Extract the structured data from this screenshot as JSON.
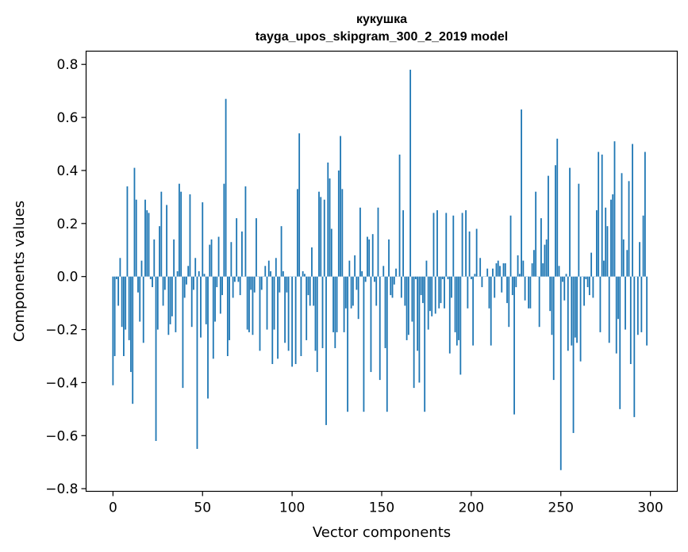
{
  "chart_data": {
    "type": "bar",
    "title": "кукушка",
    "subtitle": "tayga_upos_skipgram_300_2_2019 model",
    "xlabel": "Vector components",
    "ylabel": "Components values",
    "xlim": [
      -15,
      315
    ],
    "ylim": [
      -0.81,
      0.85
    ],
    "xticks": [
      0,
      50,
      100,
      150,
      200,
      250,
      300
    ],
    "xtick_labels": [
      "0",
      "50",
      "100",
      "150",
      "200",
      "250",
      "300"
    ],
    "yticks": [
      -0.8,
      -0.6,
      -0.4,
      -0.2,
      0.0,
      0.2,
      0.4,
      0.6,
      0.8
    ],
    "ytick_labels": [
      "−0.8",
      "−0.6",
      "−0.4",
      "−0.2",
      "0.0",
      "0.2",
      "0.4",
      "0.6",
      "0.8"
    ],
    "bar_color": "#1f77b4",
    "grid": false,
    "series": [
      {
        "name": "кукушка",
        "x_start": 0,
        "values": [
          -0.41,
          -0.3,
          -0.01,
          -0.11,
          0.07,
          -0.19,
          -0.3,
          -0.2,
          0.34,
          -0.24,
          -0.36,
          -0.48,
          0.41,
          0.29,
          -0.06,
          -0.17,
          0.06,
          -0.25,
          0.29,
          0.25,
          0.24,
          -0.01,
          -0.04,
          0.14,
          -0.62,
          -0.2,
          0.19,
          0.32,
          -0.11,
          -0.05,
          0.27,
          -0.22,
          -0.18,
          -0.15,
          0.14,
          -0.21,
          0.02,
          0.35,
          0.32,
          -0.42,
          -0.08,
          -0.03,
          0.04,
          0.31,
          -0.19,
          -0.05,
          0.07,
          -0.65,
          0.02,
          -0.23,
          0.28,
          0.01,
          -0.18,
          -0.46,
          0.12,
          0.14,
          -0.31,
          -0.17,
          -0.04,
          0.15,
          -0.14,
          -0.07,
          0.35,
          0.67,
          -0.3,
          -0.24,
          0.13,
          -0.08,
          -0.02,
          0.22,
          -0.02,
          -0.07,
          0.17,
          0.0,
          0.34,
          -0.2,
          -0.21,
          -0.05,
          -0.22,
          -0.06,
          0.22,
          0.0,
          -0.28,
          -0.05,
          0.0,
          0.04,
          -0.2,
          0.06,
          0.02,
          -0.33,
          -0.2,
          0.07,
          -0.31,
          -0.06,
          0.19,
          0.02,
          -0.25,
          -0.06,
          -0.28,
          0.0,
          -0.34,
          0.0,
          -0.33,
          0.33,
          0.54,
          -0.3,
          0.02,
          0.01,
          -0.24,
          -0.07,
          -0.11,
          0.11,
          -0.11,
          -0.28,
          -0.36,
          0.32,
          0.3,
          -0.27,
          0.29,
          -0.56,
          0.43,
          0.37,
          0.18,
          -0.21,
          -0.27,
          -0.21,
          0.4,
          0.53,
          0.33,
          -0.21,
          -0.12,
          -0.51,
          0.06,
          -0.12,
          -0.11,
          0.08,
          -0.05,
          -0.16,
          0.26,
          0.02,
          -0.51,
          -0.02,
          0.15,
          0.14,
          -0.36,
          0.16,
          -0.02,
          -0.11,
          0.26,
          -0.39,
          0.0,
          0.04,
          -0.27,
          -0.51,
          0.14,
          -0.07,
          -0.08,
          -0.03,
          0.03,
          0.0,
          0.46,
          -0.08,
          0.25,
          -0.11,
          -0.24,
          -0.22,
          0.78,
          -0.17,
          -0.42,
          -0.01,
          -0.28,
          -0.4,
          -0.07,
          -0.1,
          -0.51,
          0.06,
          -0.2,
          -0.13,
          -0.15,
          0.24,
          -0.14,
          0.25,
          -0.12,
          -0.1,
          -0.01,
          -0.12,
          0.24,
          -0.01,
          -0.29,
          -0.08,
          0.23,
          -0.21,
          -0.26,
          -0.24,
          -0.37,
          0.24,
          0.0,
          0.25,
          -0.12,
          0.17,
          -0.01,
          -0.26,
          0.01,
          0.18,
          0.0,
          0.07,
          -0.04,
          0.0,
          0.0,
          0.03,
          -0.12,
          -0.26,
          0.03,
          -0.08,
          0.05,
          0.06,
          0.04,
          -0.06,
          0.05,
          0.05,
          -0.1,
          -0.19,
          0.23,
          -0.07,
          -0.52,
          -0.04,
          0.08,
          0.01,
          0.63,
          0.06,
          -0.09,
          0.0,
          -0.12,
          -0.12,
          0.05,
          0.1,
          0.32,
          0.0,
          -0.19,
          0.22,
          0.05,
          0.12,
          0.14,
          0.38,
          -0.13,
          -0.22,
          -0.39,
          0.42,
          0.52,
          0.04,
          -0.73,
          -0.02,
          -0.09,
          0.01,
          -0.28,
          0.41,
          -0.26,
          -0.59,
          -0.23,
          -0.25,
          0.35,
          -0.32,
          0.0,
          -0.11,
          -0.01,
          -0.04,
          -0.07,
          0.09,
          -0.08,
          0.0,
          0.25,
          0.47,
          -0.21,
          0.46,
          0.06,
          0.26,
          0.19,
          -0.25,
          0.29,
          0.31,
          0.51,
          -0.29,
          -0.16,
          -0.5,
          0.39,
          0.14,
          -0.2,
          0.1,
          0.36,
          -0.33,
          0.5,
          -0.53,
          0.0,
          -0.22,
          0.13,
          -0.21,
          0.23,
          0.47,
          -0.26
        ]
      }
    ]
  }
}
